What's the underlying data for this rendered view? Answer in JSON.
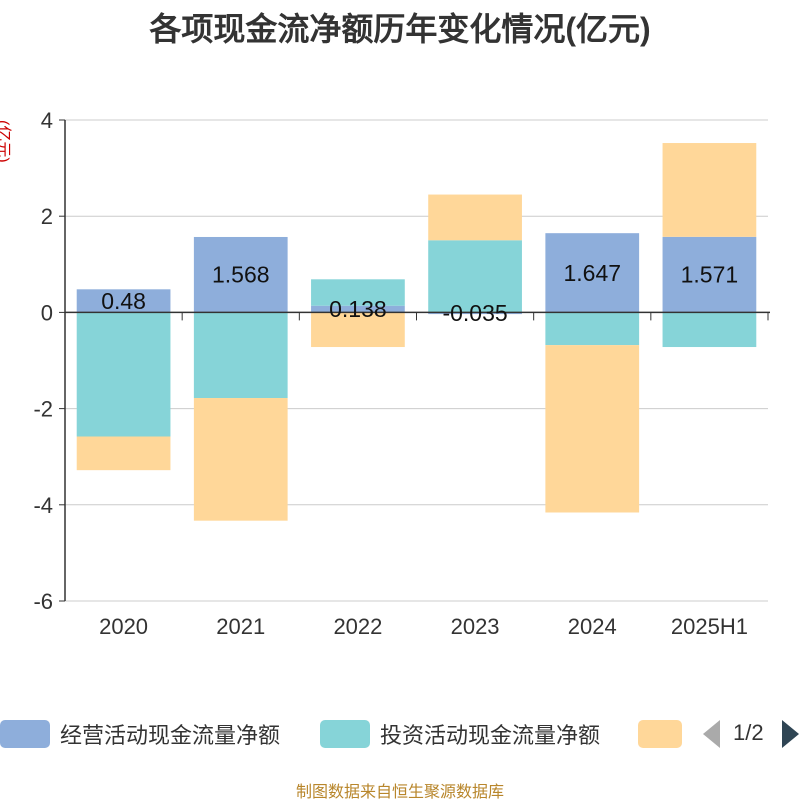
{
  "title": "各项现金流净额历年变化情况(亿元)",
  "footer": "制图数据来自恒生聚源数据库",
  "legend": {
    "page_indicator": "1/2"
  },
  "colors": {
    "operating": "#8eaedb",
    "investing": "#86d4d8",
    "financing": "#ffd799",
    "axis_label": "#cc0000",
    "pager_active": "#2f4554",
    "pager_inactive": "#aaaaaa"
  },
  "chart_data": {
    "type": "bar",
    "stacked": true,
    "ylabel": "(亿元)",
    "ylim": [
      -6,
      4
    ],
    "yticks": [
      -6,
      -4,
      -2,
      0,
      2,
      4
    ],
    "grid": true,
    "legend_position": "bottom",
    "categories": [
      "2020",
      "2021",
      "2022",
      "2023",
      "2024",
      "2025H1"
    ],
    "series": [
      {
        "name": "经营活动现金流量净额",
        "values": [
          0.48,
          1.568,
          0.138,
          -0.035,
          1.647,
          1.571
        ],
        "data_labels": [
          "0.48",
          "1.568",
          "0.138",
          "-0.035",
          "1.647",
          "1.571"
        ]
      },
      {
        "name": "投资活动现金流量净额",
        "values": [
          -2.58,
          -1.78,
          0.55,
          1.5,
          -0.68,
          -0.72
        ]
      },
      {
        "name": "",
        "values": [
          -0.7,
          -2.55,
          -0.72,
          0.95,
          -3.48,
          1.95
        ]
      }
    ]
  }
}
